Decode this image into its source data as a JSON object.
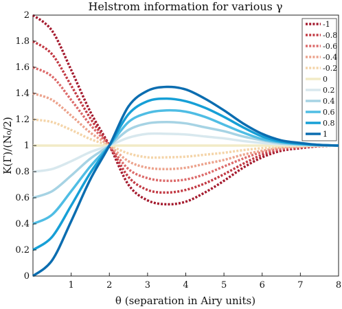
{
  "chart_data": {
    "type": "line",
    "title": "Helstrom information for various γ",
    "xlabel": "θ (separation in Airy units)",
    "ylabel": "K(Γ)/(N₀/2)",
    "xlim": [
      0,
      8
    ],
    "ylim": [
      0,
      2
    ],
    "xticks": [
      1,
      2,
      3,
      4,
      5,
      6,
      7,
      8
    ],
    "yticks": [
      0,
      0.2,
      0.4,
      0.6,
      0.8,
      1,
      1.2,
      1.4,
      1.6,
      1.8,
      2
    ],
    "xtick_labels": [
      "1",
      "2",
      "3",
      "4",
      "5",
      "6",
      "7",
      "8"
    ],
    "ytick_labels": [
      "0",
      "0.2",
      "0.4",
      "0.6",
      "0.8",
      "1",
      "1.2",
      "1.4",
      "1.6",
      "1.8",
      "2"
    ],
    "grid": false,
    "legend_position": "top-right",
    "x": [
      0,
      0.5,
      1,
      1.5,
      2,
      2.5,
      3,
      3.5,
      4,
      4.5,
      5,
      5.5,
      6,
      6.5,
      7,
      7.5,
      8
    ],
    "series": [
      {
        "name": "-1",
        "gamma": -1,
        "color": "#a41a2e",
        "style": "dotted",
        "values": [
          2.0,
          1.88,
          1.58,
          1.26,
          1.0,
          0.7,
          0.58,
          0.55,
          0.57,
          0.64,
          0.73,
          0.83,
          0.91,
          0.96,
          0.98,
          0.995,
          1.0
        ]
      },
      {
        "name": "-0.8",
        "gamma": -0.8,
        "color": "#c23a44",
        "style": "dotted",
        "values": [
          1.8,
          1.7,
          1.46,
          1.21,
          1.0,
          0.76,
          0.66,
          0.64,
          0.66,
          0.71,
          0.78,
          0.86,
          0.93,
          0.97,
          0.985,
          0.996,
          1.0
        ]
      },
      {
        "name": "-0.6",
        "gamma": -0.6,
        "color": "#dc6a6a",
        "style": "dotted",
        "values": [
          1.6,
          1.53,
          1.35,
          1.16,
          1.0,
          0.82,
          0.75,
          0.73,
          0.74,
          0.78,
          0.84,
          0.9,
          0.95,
          0.975,
          0.99,
          0.997,
          1.0
        ]
      },
      {
        "name": "-0.4",
        "gamma": -0.4,
        "color": "#eca28c",
        "style": "dotted",
        "values": [
          1.4,
          1.35,
          1.23,
          1.1,
          1.0,
          0.88,
          0.83,
          0.82,
          0.83,
          0.86,
          0.89,
          0.93,
          0.96,
          0.985,
          0.993,
          0.998,
          1.0
        ]
      },
      {
        "name": "-0.2",
        "gamma": -0.2,
        "color": "#f4d4a8",
        "style": "dotted",
        "values": [
          1.2,
          1.18,
          1.12,
          1.05,
          1.0,
          0.94,
          0.91,
          0.91,
          0.915,
          0.93,
          0.945,
          0.965,
          0.98,
          0.99,
          0.996,
          0.999,
          1.0
        ]
      },
      {
        "name": "0",
        "gamma": 0,
        "color": "#f2ebc6",
        "style": "solid",
        "values": [
          1.0,
          1.0,
          1.0,
          1.0,
          1.0,
          1.0,
          1.0,
          1.0,
          1.0,
          1.0,
          1.0,
          1.0,
          1.0,
          1.0,
          1.0,
          1.0,
          1.0
        ]
      },
      {
        "name": "0.2",
        "gamma": 0.2,
        "color": "#d8e8ee",
        "style": "solid",
        "values": [
          0.8,
          0.82,
          0.88,
          0.95,
          1.0,
          1.06,
          1.09,
          1.09,
          1.085,
          1.07,
          1.055,
          1.035,
          1.02,
          1.01,
          1.004,
          1.001,
          1.0
        ]
      },
      {
        "name": "0.4",
        "gamma": 0.4,
        "color": "#a6d3e4",
        "style": "solid",
        "values": [
          0.6,
          0.65,
          0.77,
          0.9,
          1.0,
          1.12,
          1.17,
          1.18,
          1.17,
          1.14,
          1.11,
          1.07,
          1.04,
          1.015,
          1.007,
          1.002,
          1.0
        ]
      },
      {
        "name": "0.6",
        "gamma": 0.6,
        "color": "#4fbde4",
        "style": "solid",
        "values": [
          0.4,
          0.47,
          0.65,
          0.84,
          1.0,
          1.18,
          1.25,
          1.27,
          1.26,
          1.22,
          1.16,
          1.1,
          1.05,
          1.025,
          1.01,
          1.003,
          1.0
        ]
      },
      {
        "name": "0.8",
        "gamma": 0.8,
        "color": "#169fd6",
        "style": "solid",
        "values": [
          0.2,
          0.3,
          0.54,
          0.79,
          1.0,
          1.24,
          1.34,
          1.36,
          1.34,
          1.29,
          1.22,
          1.14,
          1.07,
          1.03,
          1.015,
          1.005,
          1.0
        ]
      },
      {
        "name": "1",
        "gamma": 1,
        "color": "#0b6db0",
        "style": "solid",
        "values": [
          0.0,
          0.12,
          0.42,
          0.74,
          1.0,
          1.3,
          1.42,
          1.45,
          1.43,
          1.36,
          1.27,
          1.17,
          1.09,
          1.04,
          1.02,
          1.005,
          1.0
        ]
      }
    ]
  }
}
